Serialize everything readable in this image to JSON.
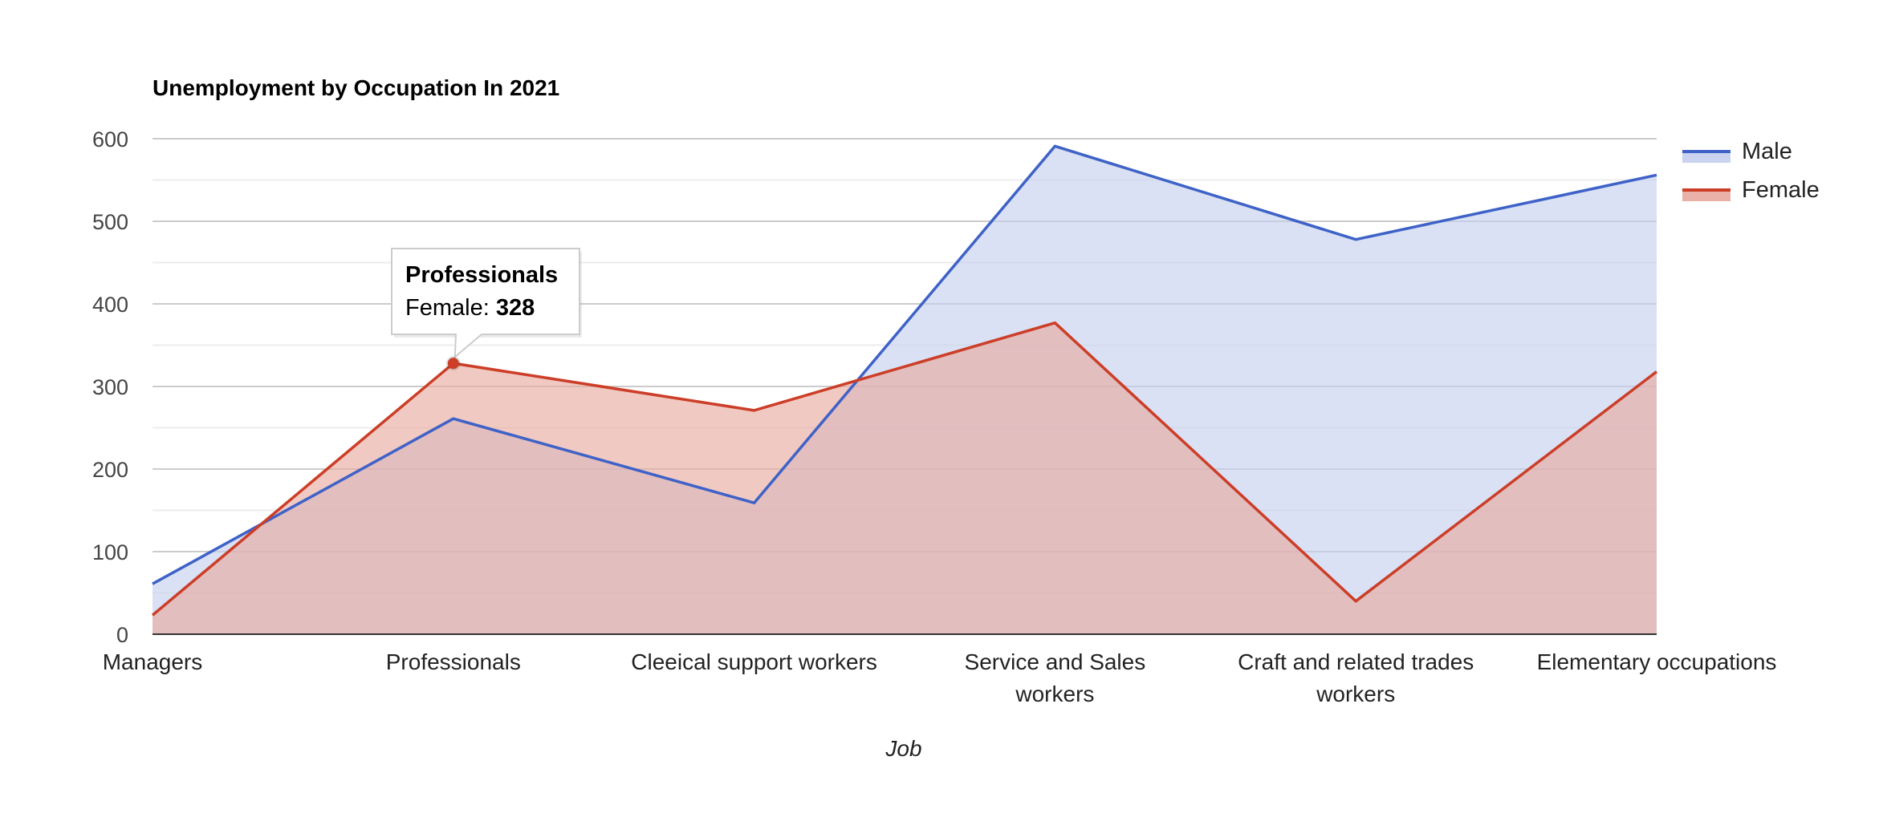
{
  "chart_data": {
    "type": "area",
    "title": "Unemployment by Occupation In 2021",
    "xlabel": "Job",
    "ylabel": "",
    "categories": [
      "Managers",
      "Professionals",
      "Cleeical support workers",
      "Service and Sales workers",
      "Craft and related trades workers",
      "Elementary occupations"
    ],
    "category_lines": [
      [
        "Managers"
      ],
      [
        "Professionals"
      ],
      [
        "Cleeical support workers"
      ],
      [
        "Service and Sales",
        "workers"
      ],
      [
        "Craft and related trades",
        "workers"
      ],
      [
        "Elementary occupations"
      ]
    ],
    "series": [
      {
        "name": "Male",
        "values": [
          61,
          261,
          159,
          591,
          478,
          556
        ],
        "color": "#3e62c7",
        "fill": "#c4cfee"
      },
      {
        "name": "Female",
        "values": [
          23,
          328,
          271,
          377,
          40,
          318
        ],
        "color": "#cc3e27",
        "fill": "#e8a89e"
      }
    ],
    "ylim": [
      0,
      600
    ],
    "yticks": [
      0,
      100,
      200,
      300,
      400,
      500,
      600
    ],
    "grid": true,
    "legend_position": "right",
    "tooltip": {
      "title": "Professionals",
      "label": "Female: ",
      "value": "328"
    }
  }
}
